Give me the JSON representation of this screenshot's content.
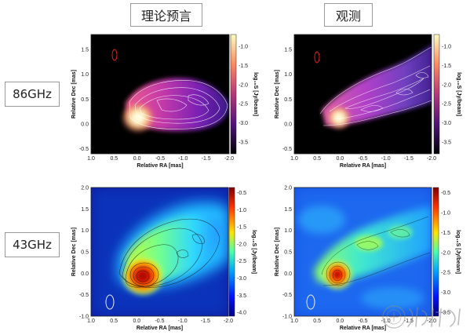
{
  "column_titles": [
    "理论预言",
    "观测"
  ],
  "row_titles": [
    "86GHz",
    "43GHz"
  ],
  "colorbar_label": "log₁₀S [Jy/beam]",
  "chart_data": [
    {
      "type": "heatmap",
      "row": "86GHz",
      "column": "理论预言",
      "xlabel": "Relative RA [mas]",
      "ylabel": "Relative Dec [mas]",
      "xlim": [
        1.0,
        -2.0
      ],
      "ylim": [
        -0.6,
        1.8
      ],
      "xticks": [
        "1.0",
        "0.5",
        "0.0",
        "-0.5",
        "-1.0",
        "-1.5",
        "-2.0"
      ],
      "yticks": [
        "1.5",
        "1.0",
        "0.5",
        "0.0",
        "-0.5"
      ],
      "colorbar_ticks": [
        "-1.0",
        "-1.5",
        "-2.0",
        "-2.5",
        "-3.0",
        "-3.5"
      ],
      "colormap": "magma",
      "contours": true
    },
    {
      "type": "heatmap",
      "row": "86GHz",
      "column": "观测",
      "xlabel": "Relative RA [mas]",
      "ylabel": "Relative Dec [mas]",
      "xlim": [
        1.0,
        -2.0
      ],
      "ylim": [
        -0.6,
        1.8
      ],
      "xticks": [
        "1.0",
        "0.5",
        "0.0",
        "-0.5",
        "-1.0",
        "-1.5",
        "-2.0"
      ],
      "yticks": [
        "1.5",
        "1.0",
        "0.5",
        "0.0",
        "-0.5"
      ],
      "colorbar_ticks": [
        "-1.0",
        "-1.5",
        "-2.0",
        "-2.5",
        "-3.0",
        "-3.5"
      ],
      "colormap": "magma",
      "contours": true
    },
    {
      "type": "heatmap",
      "row": "43GHz",
      "column": "理论预言",
      "xlabel": "Relative RA [mas]",
      "ylabel": "Relative Dec [mas]",
      "xlim": [
        1.0,
        -2.0
      ],
      "ylim": [
        -1.0,
        2.0
      ],
      "xticks": [
        "1.0",
        "0.5",
        "0.0",
        "-0.5",
        "-1.0",
        "-1.5",
        "-2.0"
      ],
      "yticks": [
        "2.0",
        "1.5",
        "1.0",
        "0.5",
        "0.0",
        "-0.5",
        "-1.0"
      ],
      "colorbar_ticks": [
        "-0.5",
        "-1.0",
        "-1.5",
        "-2.0",
        "-2.5",
        "-3.0",
        "-3.5",
        "-4.0"
      ],
      "colormap": "jet",
      "contours": true
    },
    {
      "type": "heatmap",
      "row": "43GHz",
      "column": "观测",
      "xlabel": "Relative RA [mas]",
      "ylabel": "Relative Dec [mas]",
      "xlim": [
        1.0,
        -2.0
      ],
      "ylim": [
        -1.0,
        2.0
      ],
      "xticks": [
        "1.0",
        "0.5",
        "0.0",
        "-0.5",
        "-1.0",
        "-1.5",
        "-2.0"
      ],
      "yticks": [
        "2.0",
        "1.5",
        "1.0",
        "0.5",
        "0.0",
        "-0.5",
        "-1.0"
      ],
      "colorbar_ticks": [
        "-0.5",
        "-1.0",
        "-1.5",
        "-2.0",
        "-2.5",
        "-3.0",
        "-3.5"
      ],
      "colormap": "jet",
      "contours": true
    }
  ]
}
